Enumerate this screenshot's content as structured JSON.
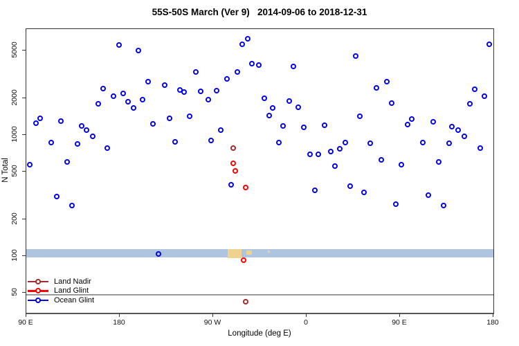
{
  "title": "55S-50S March (Ver 9)   2014-09-06 to 2018-12-31",
  "chart_data": {
    "type": "scatter",
    "title": "55S-50S March (Ver 9)   2014-09-06 to 2018-12-31",
    "x_axis": {
      "label": "Longitude (deg E)",
      "note": "axis runs eastward: 90E at left edge through 180, 90W, 0, 90E to 180 at right; pos = degrees east of left edge (0-450)",
      "range": [
        0,
        450
      ],
      "ticks": [
        {
          "pos": 0,
          "label": "90 E"
        },
        {
          "pos": 90,
          "label": "180"
        },
        {
          "pos": 180,
          "label": "90 W"
        },
        {
          "pos": 270,
          "label": "0"
        },
        {
          "pos": 360,
          "label": "90 E"
        },
        {
          "pos": 450,
          "label": "180"
        }
      ]
    },
    "y_axis": {
      "label": "N Total",
      "scale": "log",
      "range": [
        35,
        7500
      ],
      "ticks": [
        50,
        100,
        200,
        500,
        1000,
        2000,
        5000
      ]
    },
    "grid": false,
    "legend_position": "bottom-left-inside",
    "series": [
      {
        "name": "Land Nadir",
        "color": "#A52A2A",
        "points": [
          [
            199,
            780
          ],
          [
            211,
            42
          ]
        ]
      },
      {
        "name": "Land Glint",
        "color": "#FF0000",
        "points": [
          [
            199,
            580
          ],
          [
            201,
            505
          ],
          [
            211,
            370
          ],
          [
            209,
            93
          ]
        ]
      },
      {
        "name": "Ocean Glint",
        "color": "#0000EE",
        "points": [
          [
            89,
            5500
          ],
          [
            108,
            5000
          ],
          [
            74,
            2400
          ],
          [
            84,
            2100
          ],
          [
            93,
            2200
          ],
          [
            98,
            1870
          ],
          [
            103,
            1660
          ],
          [
            69,
            1800
          ],
          [
            112,
            1950
          ],
          [
            13,
            1380
          ],
          [
            9,
            1250
          ],
          [
            33,
            1300
          ],
          [
            53,
            1190
          ],
          [
            208,
            5600
          ],
          [
            213,
            6200
          ],
          [
            217,
            3900
          ],
          [
            224,
            3770
          ],
          [
            203,
            3300
          ],
          [
            193,
            2900
          ],
          [
            163,
            3300
          ],
          [
            117,
            2750
          ],
          [
            133,
            2570
          ],
          [
            148,
            2350
          ],
          [
            152,
            2270
          ],
          [
            168,
            2300
          ],
          [
            175,
            1950
          ],
          [
            183,
            2320
          ],
          [
            122,
            1230
          ],
          [
            138,
            1380
          ],
          [
            157,
            1420
          ],
          [
            317,
            4500
          ],
          [
            257,
            3700
          ],
          [
            337,
            2440
          ],
          [
            229,
            2000
          ],
          [
            237,
            1680
          ],
          [
            253,
            1900
          ],
          [
            262,
            1700
          ],
          [
            234,
            1440
          ],
          [
            321,
            1430
          ],
          [
            287,
            1200
          ],
          [
            247,
            1180
          ],
          [
            446,
            5600
          ],
          [
            347,
            2750
          ],
          [
            432,
            2370
          ],
          [
            441,
            2100
          ],
          [
            352,
            1830
          ],
          [
            427,
            1800
          ],
          [
            371,
            1350
          ],
          [
            367,
            1220
          ],
          [
            392,
            1290
          ],
          [
            410,
            1170
          ],
          [
            58,
            1100
          ],
          [
            64,
            980
          ],
          [
            24,
            870
          ],
          [
            49,
            840
          ],
          [
            78,
            780
          ],
          [
            39,
            600
          ],
          [
            3,
            570
          ],
          [
            29,
            310
          ],
          [
            44,
            260
          ],
          [
            143,
            880
          ],
          [
            178,
            900
          ],
          [
            187,
            1090
          ],
          [
            197,
            390
          ],
          [
            267,
            1150
          ],
          [
            243,
            860
          ],
          [
            307,
            870
          ],
          [
            331,
            850
          ],
          [
            273,
            690
          ],
          [
            281,
            690
          ],
          [
            293,
            730
          ],
          [
            302,
            770
          ],
          [
            297,
            550
          ],
          [
            312,
            380
          ],
          [
            325,
            335
          ],
          [
            278,
            350
          ],
          [
            416,
            1090
          ],
          [
            422,
            980
          ],
          [
            382,
            860
          ],
          [
            407,
            850
          ],
          [
            437,
            780
          ],
          [
            342,
            625
          ],
          [
            361,
            570
          ],
          [
            397,
            600
          ],
          [
            387,
            320
          ],
          [
            356,
            270
          ],
          [
            402,
            260
          ],
          [
            127,
            104
          ]
        ]
      }
    ],
    "map_strip": {
      "description": "world map strip for 55S-50S: ocean band with land patches (South America, Falklands, South Georgia)",
      "ocean_color": "#AFC4DF",
      "land_color": "#EFD28E",
      "n_range": [
        97,
        112
      ],
      "land_patches_pos": [
        [
          194,
          207.5
        ],
        [
          212,
          217
        ],
        [
          232.5,
          234.5
        ]
      ]
    },
    "reference_line": {
      "n": 48,
      "color": "#999999"
    }
  },
  "legend": {
    "entries": [
      "Land Nadir",
      "Land Glint",
      "Ocean Glint"
    ]
  }
}
